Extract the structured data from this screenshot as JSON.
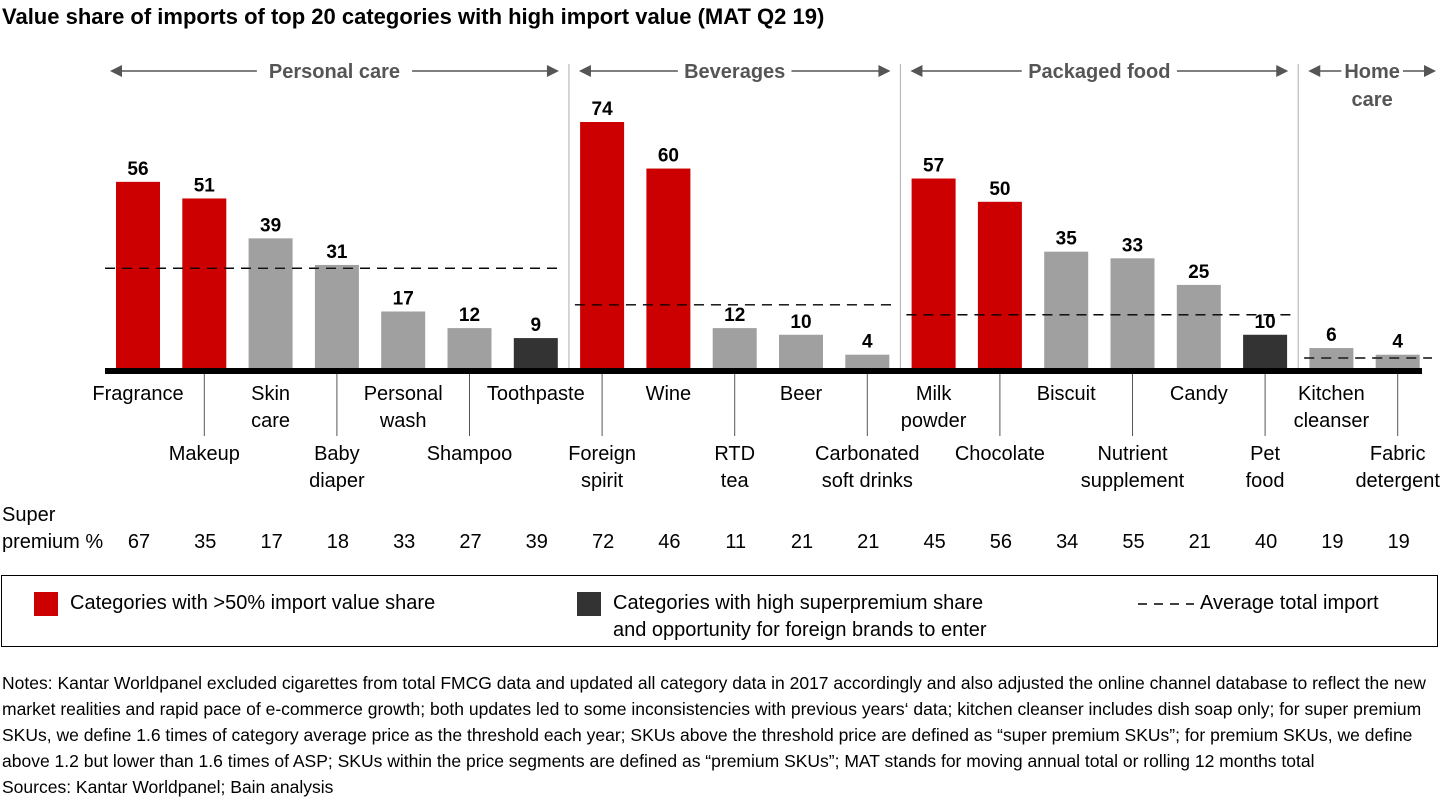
{
  "chart_data": {
    "type": "bar",
    "title": "Value share of imports of top 20 categories with high import value (MAT Q2 19)",
    "xlabel": "",
    "ylabel": "",
    "ylim": [
      0,
      74
    ],
    "grid": false,
    "categories": [
      "Fragrance",
      "Makeup",
      "Skin care",
      "Baby diaper",
      "Personal wash",
      "Shampoo",
      "Toothpaste",
      "Foreign spirit",
      "Wine",
      "RTD tea",
      "Beer",
      "Carbonated soft drinks",
      "Milk powder",
      "Chocolate",
      "Biscuit",
      "Nutrient supplement",
      "Candy",
      "Pet food",
      "Kitchen cleanser",
      "Fabric detergent"
    ],
    "category_lines": [
      [
        "Fragrance"
      ],
      [
        "Makeup"
      ],
      [
        "Skin",
        "care"
      ],
      [
        "Baby",
        "diaper"
      ],
      [
        "Personal",
        "wash"
      ],
      [
        "Shampoo"
      ],
      [
        "Toothpaste"
      ],
      [
        "Foreign",
        "spirit"
      ],
      [
        "Wine"
      ],
      [
        "RTD",
        "tea"
      ],
      [
        "Beer"
      ],
      [
        "Carbonated",
        "soft drinks"
      ],
      [
        "Milk",
        "powder"
      ],
      [
        "Chocolate"
      ],
      [
        "Biscuit"
      ],
      [
        "Nutrient",
        "supplement"
      ],
      [
        "Candy"
      ],
      [
        "Pet",
        "food"
      ],
      [
        "Kitchen",
        "cleanser"
      ],
      [
        "Fabric",
        "detergent"
      ]
    ],
    "values": [
      56,
      51,
      39,
      31,
      17,
      12,
      9,
      74,
      60,
      12,
      10,
      4,
      57,
      50,
      35,
      33,
      25,
      10,
      6,
      4
    ],
    "bar_class": [
      "high",
      "high",
      "normal",
      "normal",
      "normal",
      "normal",
      "opportunity",
      "high",
      "high",
      "normal",
      "normal",
      "normal",
      "high",
      "high",
      "normal",
      "normal",
      "normal",
      "opportunity",
      "normal",
      "normal"
    ],
    "super_premium_label": [
      "Super",
      "premium %"
    ],
    "super_premium_pct": [
      67,
      35,
      17,
      18,
      33,
      27,
      39,
      72,
      46,
      11,
      21,
      21,
      45,
      56,
      34,
      55,
      21,
      40,
      19,
      19
    ],
    "groups": [
      {
        "name": "Personal care",
        "lines": [
          "Personal care"
        ],
        "start": 0,
        "end": 6,
        "average_total_import": 30
      },
      {
        "name": "Beverages",
        "lines": [
          "Beverages"
        ],
        "start": 7,
        "end": 11,
        "average_total_import": 19
      },
      {
        "name": "Packaged food",
        "lines": [
          "Packaged food"
        ],
        "start": 12,
        "end": 17,
        "average_total_import": 16
      },
      {
        "name": "Home care",
        "lines": [
          "Home",
          "care"
        ],
        "start": 18,
        "end": 19,
        "average_total_import": 3
      }
    ],
    "colors": {
      "high": "#cc0000",
      "normal": "#a0a0a0",
      "opportunity": "#333333",
      "group_label": "#555555"
    },
    "legend": {
      "position": "bottom",
      "items": [
        {
          "key": "high",
          "text": [
            "Categories with >50% import value share"
          ]
        },
        {
          "key": "opportunity",
          "text": [
            "Categories with high superpremium share",
            "and opportunity for foreign brands to enter"
          ]
        },
        {
          "key": "average",
          "text": [
            "Average total import"
          ]
        }
      ]
    }
  },
  "notes": "Notes: Kantar Worldpanel excluded cigarettes from total FMCG data and updated all category data in 2017 accordingly and also adjusted the online channel database to reflect the new market realities and rapid pace of e-commerce growth; both updates led to some inconsistencies with previous years‘ data; kitchen cleanser includes dish soap only; for super premium SKUs, we define 1.6 times of category average price as the threshold each year; SKUs above the threshold price are defined as “super premium SKUs”; for premium SKUs, we define above 1.2 but lower than 1.6 times of ASP; SKUs within the price segments are defined as “premium SKUs”; MAT stands for moving annual total or rolling 12 months total",
  "sources": "Sources: Kantar Worldpanel; Bain analysis"
}
